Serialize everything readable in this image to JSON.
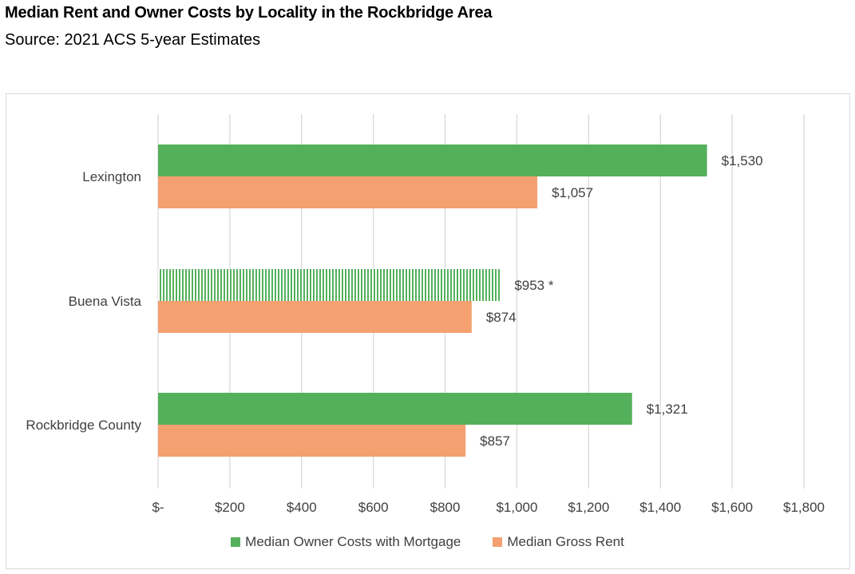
{
  "colors": {
    "owner": "#55b05b",
    "rent": "#f4a070",
    "grid": "#d9d9d9",
    "text": "#404040"
  },
  "chart_data": {
    "type": "bar",
    "orientation": "horizontal",
    "title": "Median Rent and Owner Costs by Locality in the Rockbridge Area",
    "subtitle": "Source: 2021 ACS 5-year Estimates",
    "categories": [
      "Lexington",
      "Buena Vista",
      "Rockbridge County"
    ],
    "series": [
      {
        "name": "Median Owner Costs with Mortgage",
        "values": [
          1530,
          953,
          1321
        ],
        "labels": [
          "$1,530",
          "$953 *",
          "$1,321"
        ],
        "patterned": [
          false,
          true,
          false
        ]
      },
      {
        "name": "Median Gross Rent",
        "values": [
          1057,
          874,
          857
        ],
        "labels": [
          "$1,057",
          "$874",
          "$857"
        ]
      }
    ],
    "xlim": [
      0,
      1800
    ],
    "xticks": [
      0,
      200,
      400,
      600,
      800,
      1000,
      1200,
      1400,
      1600,
      1800
    ],
    "xtick_labels": [
      "$-",
      "$200",
      "$400",
      "$600",
      "$800",
      "$1,000",
      "$1,200",
      "$1,400",
      "$1,600",
      "$1,800"
    ],
    "grid": true,
    "legend_position": "bottom"
  }
}
